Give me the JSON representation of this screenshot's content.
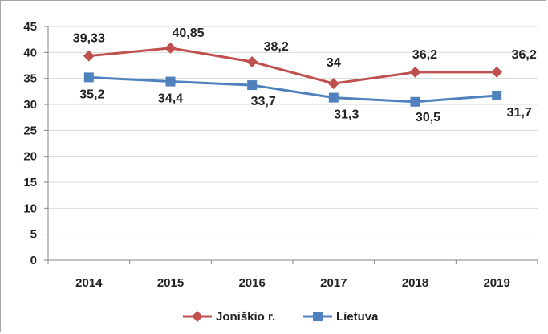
{
  "chart_data": {
    "type": "line",
    "categories": [
      "2014",
      "2015",
      "2016",
      "2017",
      "2018",
      "2019"
    ],
    "ylim": [
      0,
      45
    ],
    "yticks": [
      0,
      5,
      10,
      15,
      20,
      25,
      30,
      35,
      40,
      45
    ],
    "grid": true,
    "legend_position": "bottom",
    "series": [
      {
        "name": "Joniškio r.",
        "color": "#c0504d",
        "marker": "diamond",
        "values": [
          39.33,
          40.85,
          38.2,
          34,
          36.2,
          36.2
        ],
        "labels": [
          "39,33",
          "40,85",
          "38,2",
          "34",
          "36,2",
          "36,2"
        ]
      },
      {
        "name": "Lietuva",
        "color": "#4f81bd",
        "marker": "square",
        "values": [
          35.2,
          34.4,
          33.7,
          31.3,
          30.5,
          31.7
        ],
        "labels": [
          "35,2",
          "34,4",
          "33,7",
          "31,3",
          "30,5",
          "31,7"
        ]
      }
    ]
  }
}
